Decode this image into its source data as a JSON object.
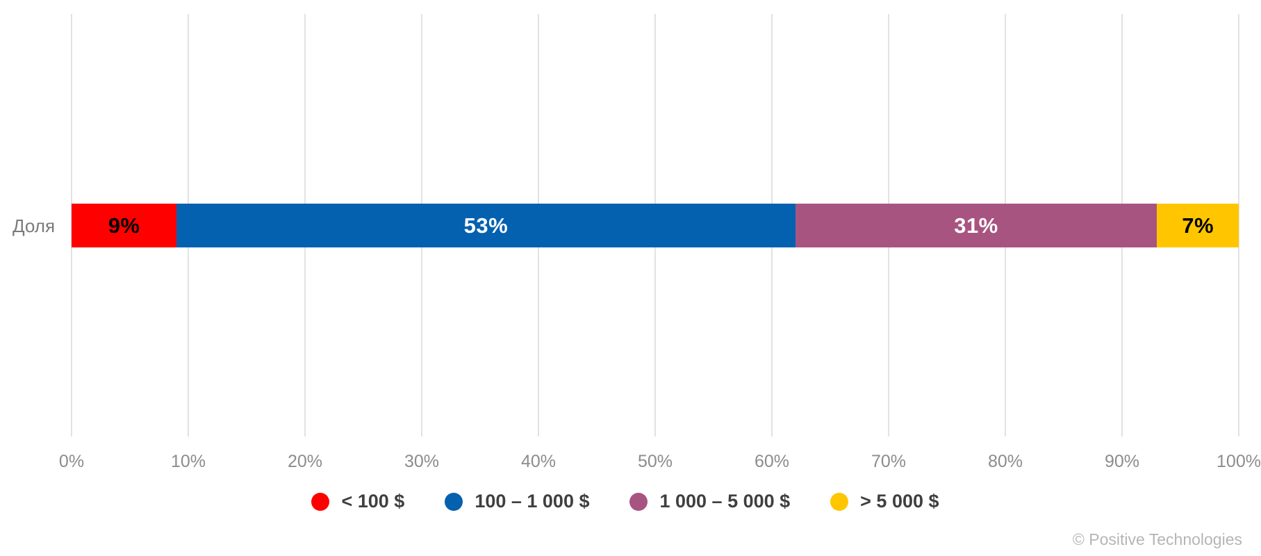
{
  "chart_data": {
    "type": "bar",
    "orientation": "horizontal-stacked",
    "row_label": "Доля",
    "series": [
      {
        "name": "< 100 $",
        "value": 9,
        "label": "9%",
        "color": "#ff0000",
        "label_color": "#000000"
      },
      {
        "name": "100 – 1 000 $",
        "value": 53,
        "label": "53%",
        "color": "#0361b0",
        "label_color": "#ffffff"
      },
      {
        "name": "1 000 – 5 000 $",
        "value": 31,
        "label": "31%",
        "color": "#a85480",
        "label_color": "#ffffff"
      },
      {
        "name": "> 5 000 $",
        "value": 7,
        "label": "7%",
        "color": "#ffc600",
        "label_color": "#000000"
      }
    ],
    "x_ticks": [
      "0%",
      "10%",
      "20%",
      "30%",
      "40%",
      "50%",
      "60%",
      "70%",
      "80%",
      "90%",
      "100%"
    ],
    "xlim": [
      0,
      100
    ],
    "grid": true,
    "gridline_color": "#e2e2e2",
    "legend_position": "bottom-center"
  },
  "footer": {
    "copyright": "© Positive Technologies"
  }
}
